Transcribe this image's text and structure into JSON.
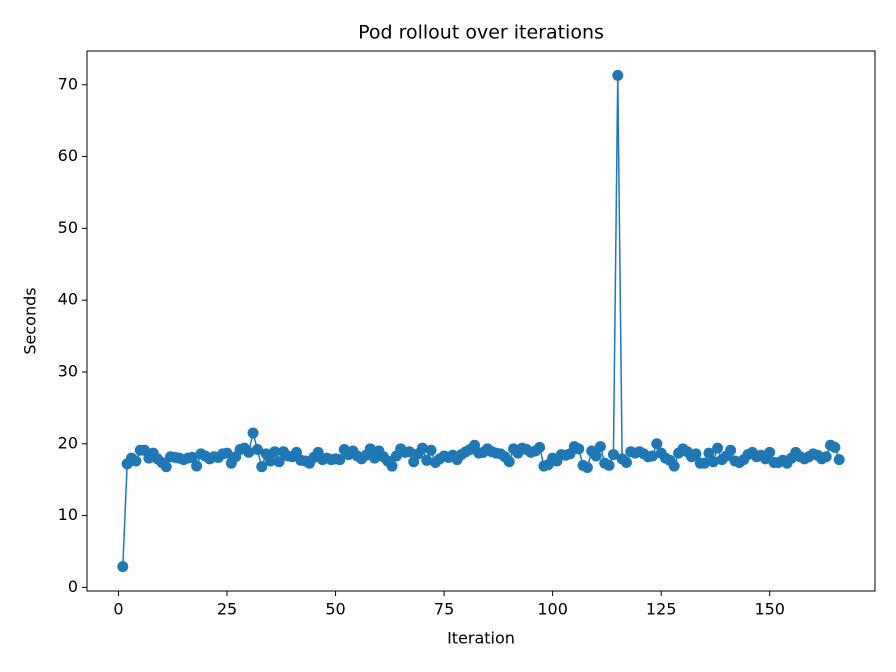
{
  "chart_data": {
    "type": "line",
    "title": "Pod rollout over iterations",
    "x_label": "Iteration",
    "y_label": "Seconds",
    "series": [
      {
        "name": "Pod rollout",
        "color": "#1f77b4",
        "x": [
          1,
          2,
          3,
          4,
          5,
          6,
          7,
          8,
          9,
          10,
          11,
          12,
          13,
          14,
          15,
          16,
          17,
          18,
          19,
          20,
          21,
          22,
          23,
          24,
          25,
          26,
          27,
          28,
          29,
          30,
          31,
          32,
          33,
          34,
          35,
          36,
          37,
          38,
          39,
          40,
          41,
          42,
          43,
          44,
          45,
          46,
          47,
          48,
          49,
          50,
          51,
          52,
          53,
          54,
          55,
          56,
          57,
          58,
          59,
          60,
          61,
          62,
          63,
          64,
          65,
          66,
          67,
          68,
          69,
          70,
          71,
          72,
          73,
          74,
          75,
          76,
          77,
          78,
          79,
          80,
          81,
          82,
          83,
          84,
          85,
          86,
          87,
          88,
          89,
          90,
          91,
          92,
          93,
          94,
          95,
          96,
          97,
          98,
          99,
          100,
          101,
          102,
          103,
          104,
          105,
          106,
          107,
          108,
          109,
          110,
          111,
          112,
          113,
          114,
          115,
          116,
          117,
          118,
          119,
          120,
          121,
          122,
          123,
          124,
          125,
          126,
          127,
          128,
          129,
          130,
          131,
          132,
          133,
          134,
          135,
          136,
          137,
          138,
          139,
          140,
          141,
          142,
          143,
          144,
          145,
          146,
          147,
          148,
          149,
          150,
          151,
          152,
          153,
          154,
          155,
          156,
          157,
          158,
          159,
          160,
          161,
          162,
          163,
          164,
          165,
          166
        ],
        "values": [
          2.9,
          17.2,
          18.0,
          17.6,
          19.1,
          19.1,
          18.0,
          18.7,
          17.9,
          17.4,
          16.8,
          18.2,
          18.1,
          18.0,
          17.8,
          18.0,
          18.1,
          16.9,
          18.6,
          18.3,
          17.9,
          18.2,
          18.1,
          18.6,
          18.7,
          17.3,
          18.2,
          19.2,
          19.4,
          18.8,
          21.5,
          19.2,
          16.8,
          18.6,
          17.6,
          18.9,
          17.5,
          18.9,
          18.3,
          18.2,
          18.8,
          17.7,
          17.6,
          17.3,
          18.1,
          18.8,
          17.8,
          18.0,
          17.8,
          17.9,
          17.8,
          19.2,
          18.5,
          19.0,
          18.3,
          17.9,
          18.4,
          19.3,
          18.0,
          19.0,
          18.2,
          17.6,
          16.9,
          18.3,
          19.3,
          18.8,
          18.9,
          17.5,
          18.6,
          19.4,
          17.7,
          19.1,
          17.4,
          17.9,
          18.3,
          18.1,
          18.4,
          17.8,
          18.5,
          18.9,
          19.2,
          19.8,
          18.7,
          18.8,
          19.3,
          18.9,
          18.7,
          18.6,
          18.2,
          17.5,
          19.3,
          18.7,
          19.4,
          19.2,
          18.8,
          19.0,
          19.5,
          16.9,
          17.1,
          18.0,
          17.6,
          18.5,
          18.4,
          18.6,
          19.6,
          19.3,
          17.0,
          16.7,
          19.0,
          18.3,
          19.6,
          17.3,
          17.0,
          18.5,
          71.3,
          17.9,
          17.4,
          18.9,
          18.7,
          18.9,
          18.6,
          18.2,
          18.3,
          20.0,
          18.7,
          18.0,
          17.7,
          16.9,
          18.7,
          19.3,
          18.9,
          18.2,
          18.6,
          17.3,
          17.3,
          18.7,
          17.5,
          19.4,
          17.8,
          18.3,
          19.1,
          17.6,
          17.4,
          17.8,
          18.5,
          18.8,
          18.2,
          18.4,
          17.9,
          18.8,
          17.4,
          17.4,
          17.7,
          17.3,
          18.0,
          18.8,
          18.2,
          17.9,
          18.2,
          18.6,
          18.4,
          17.9,
          18.2,
          19.8,
          19.5,
          17.8
        ]
      }
    ],
    "xlim": [
      -7.25,
      174.25
    ],
    "xticks": [
      0,
      25,
      50,
      75,
      100,
      125,
      150
    ],
    "ylim": [
      -0.5,
      74.7
    ],
    "yticks": [
      0,
      10,
      20,
      30,
      40,
      50,
      60,
      70
    ],
    "grid": false
  }
}
